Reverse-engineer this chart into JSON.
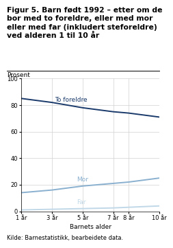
{
  "title_line1": "Figur 5. Barn født 1992 – etter om de",
  "title_line2": "bor med to foreldre, eller med mor",
  "title_line3": "eller med far (inkludert steforeldre)",
  "title_line4": "ved alderen 1 til 10 år",
  "ylabel": "Prosent",
  "xlabel": "Barnets alder",
  "source": "Kilde: Barnestatistikk, bearbeidete data.",
  "x_labels": [
    "1 år",
    "3 år",
    "5 år",
    "7 år",
    "8 år",
    "10 år"
  ],
  "x_values": [
    1,
    3,
    5,
    7,
    8,
    10
  ],
  "to_foreldre": [
    85,
    82,
    78,
    75,
    74,
    71
  ],
  "mor": [
    14,
    16,
    19,
    21,
    22,
    25
  ],
  "far": [
    1,
    1.5,
    2,
    2.5,
    3,
    4
  ],
  "color_to_foreldre": "#1a3a6b",
  "color_mor": "#8ab0d0",
  "color_far": "#c0d8e8",
  "ylim": [
    0,
    100
  ],
  "yticks": [
    0,
    20,
    40,
    60,
    80,
    100
  ],
  "label_to_foreldre": "To foreldre",
  "label_mor": "Mor",
  "label_far": "Far",
  "title_fontsize": 7.8,
  "ylabel_fontsize": 6.5,
  "xlabel_fontsize": 6.5,
  "tick_fontsize": 6.0,
  "source_fontsize": 6.0,
  "label_fontsize": 6.5
}
